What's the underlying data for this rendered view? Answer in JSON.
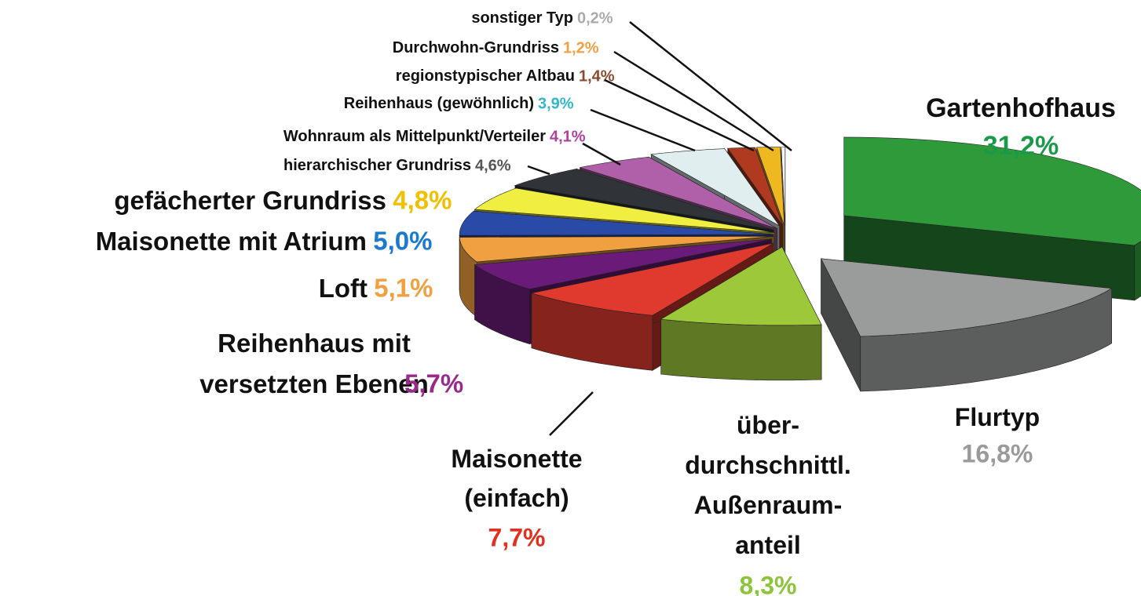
{
  "chart_data": {
    "type": "pie3d",
    "categories": [
      "Gartenhofhaus",
      "Flurtyp",
      "über-\ndurchschnittl.\nAußenraum-\nanteil",
      "Maisonette\n(einfach)",
      "Reihenhaus mit\nversetzten Ebenen",
      "Loft",
      "Maisonette mit Atrium",
      "gefächerter Grundriss",
      "hierarchischer Grundriss",
      "Wohnraum als Mittelpunkt/Verteiler",
      "Reihenhaus (gewöhnlich)",
      "regionstypischer Altbau",
      "Durchwohn-Grundriss",
      "sonstiger Typ"
    ],
    "values": [
      31.2,
      16.8,
      8.3,
      7.7,
      5.7,
      5.1,
      5.0,
      4.8,
      4.6,
      4.1,
      3.9,
      1.4,
      1.2,
      0.2
    ],
    "value_labels": [
      "31,2%",
      "16,8%",
      "8,3%",
      "7,7%",
      "5,7%",
      "5,1%",
      "5,0%",
      "4,8%",
      "4,6%",
      "4,1%",
      "3,9%",
      "1,4%",
      "1,2%",
      "0,2%"
    ],
    "colors": [
      "#2e9a3a",
      "#9a9c9c",
      "#9cc83a",
      "#e03a2e",
      "#6a1a78",
      "#f0a040",
      "#2a4aa8",
      "#f0ee40",
      "#303438",
      "#b060a8",
      "#e0eef0",
      "#b03a20",
      "#f0b820",
      "#f4f4f4"
    ],
    "label_colors": [
      "#1a9a48",
      "#9a9a9a",
      "#8cc43a",
      "#e03020",
      "#9a2a8a",
      "#f0a040",
      "#1a7ad0",
      "#f0c000",
      "#555555",
      "#b040a0",
      "#30b8c8",
      "#8a4a30",
      "#f0a040",
      "#aaaaaa"
    ]
  }
}
